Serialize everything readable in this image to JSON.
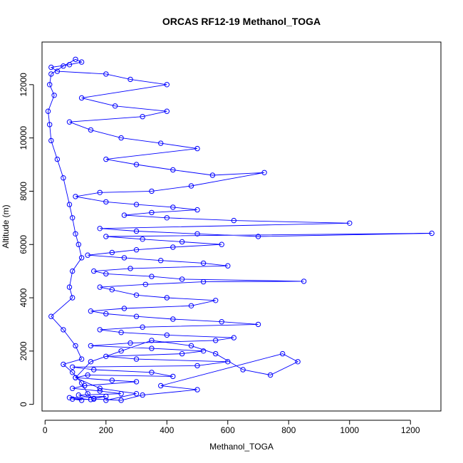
{
  "chart_data": {
    "type": "line",
    "title": "ORCAS RF12-19 Methanol_TOGA",
    "xlabel": "Methanol_TOGA",
    "ylabel": "Altitude (m)",
    "xlim": [
      -10,
      1300
    ],
    "ylim": [
      -250,
      13600
    ],
    "xticks": [
      0,
      200,
      400,
      600,
      800,
      1000,
      1200
    ],
    "yticks": [
      0,
      2000,
      4000,
      6000,
      8000,
      10000,
      12000
    ],
    "grid": false,
    "legend": "none",
    "markers": "open circles",
    "color": "#0000ff",
    "series": [
      {
        "values": [
          [
            120,
            150
          ],
          [
            90,
            200
          ],
          [
            150,
            180
          ],
          [
            80,
            250
          ],
          [
            200,
            300
          ],
          [
            160,
            220
          ],
          [
            110,
            350
          ],
          [
            250,
            400
          ],
          [
            180,
            500
          ],
          [
            90,
            600
          ],
          [
            130,
            700
          ],
          [
            300,
            850
          ],
          [
            220,
            900
          ],
          [
            100,
            1000
          ],
          [
            140,
            1100
          ],
          [
            420,
            1050
          ],
          [
            350,
            1200
          ],
          [
            160,
            1300
          ],
          [
            90,
            1400
          ],
          [
            500,
            1450
          ],
          [
            600,
            1600
          ],
          [
            300,
            1700
          ],
          [
            200,
            1800
          ],
          [
            450,
            1900
          ],
          [
            520,
            2000
          ],
          [
            350,
            2100
          ],
          [
            150,
            2200
          ],
          [
            280,
            2300
          ],
          [
            560,
            2400
          ],
          [
            620,
            2500
          ],
          [
            400,
            2600
          ],
          [
            250,
            2700
          ],
          [
            180,
            2800
          ],
          [
            320,
            2900
          ],
          [
            700,
            3000
          ],
          [
            580,
            3100
          ],
          [
            420,
            3200
          ],
          [
            300,
            3300
          ],
          [
            200,
            3400
          ],
          [
            150,
            3500
          ],
          [
            260,
            3600
          ],
          [
            480,
            3700
          ],
          [
            560,
            3900
          ],
          [
            400,
            4000
          ],
          [
            300,
            4100
          ],
          [
            220,
            4300
          ],
          [
            180,
            4400
          ],
          [
            330,
            4500
          ],
          [
            520,
            4600
          ],
          [
            850,
            4620
          ],
          [
            450,
            4700
          ],
          [
            350,
            4800
          ],
          [
            200,
            4900
          ],
          [
            160,
            5000
          ],
          [
            280,
            5100
          ],
          [
            600,
            5200
          ],
          [
            520,
            5300
          ],
          [
            380,
            5400
          ],
          [
            260,
            5500
          ],
          [
            140,
            5600
          ],
          [
            220,
            5700
          ],
          [
            300,
            5800
          ],
          [
            420,
            5900
          ],
          [
            580,
            6000
          ],
          [
            450,
            6100
          ],
          [
            320,
            6200
          ],
          [
            200,
            6300
          ],
          [
            1270,
            6420
          ],
          [
            700,
            6300
          ],
          [
            500,
            6400
          ],
          [
            300,
            6500
          ],
          [
            180,
            6600
          ],
          [
            1000,
            6800
          ],
          [
            620,
            6900
          ],
          [
            400,
            7000
          ],
          [
            260,
            7100
          ],
          [
            350,
            7200
          ],
          [
            500,
            7300
          ],
          [
            420,
            7400
          ],
          [
            300,
            7500
          ],
          [
            200,
            7600
          ],
          [
            100,
            7800
          ],
          [
            180,
            7950
          ],
          [
            350,
            8000
          ],
          [
            480,
            8200
          ],
          [
            720,
            8700
          ],
          [
            550,
            8600
          ],
          [
            420,
            8800
          ],
          [
            300,
            9000
          ],
          [
            200,
            9200
          ],
          [
            500,
            9600
          ],
          [
            380,
            9800
          ],
          [
            250,
            10000
          ],
          [
            150,
            10300
          ],
          [
            80,
            10600
          ],
          [
            320,
            10800
          ],
          [
            400,
            11000
          ],
          [
            230,
            11200
          ],
          [
            120,
            11500
          ],
          [
            400,
            12000
          ],
          [
            280,
            12200
          ],
          [
            200,
            12400
          ],
          [
            40,
            12500
          ],
          [
            20,
            12650
          ],
          [
            80,
            12750
          ],
          [
            120,
            12850
          ],
          [
            100,
            12950
          ],
          [
            60,
            12700
          ],
          [
            20,
            12400
          ],
          [
            15,
            12000
          ],
          [
            30,
            11600
          ],
          [
            10,
            11000
          ],
          [
            15,
            10500
          ],
          [
            20,
            9900
          ],
          [
            40,
            9200
          ],
          [
            60,
            8500
          ],
          [
            80,
            7500
          ],
          [
            90,
            7000
          ],
          [
            100,
            6400
          ],
          [
            110,
            6000
          ],
          [
            120,
            5500
          ],
          [
            90,
            5000
          ],
          [
            80,
            4400
          ],
          [
            90,
            4000
          ],
          [
            20,
            3300
          ],
          [
            60,
            2800
          ],
          [
            100,
            2200
          ],
          [
            120,
            1700
          ],
          [
            60,
            1500
          ],
          [
            90,
            1200
          ],
          [
            120,
            800
          ],
          [
            140,
            400
          ],
          [
            160,
            200
          ],
          [
            250,
            150
          ],
          [
            320,
            350
          ],
          [
            500,
            550
          ],
          [
            380,
            700
          ],
          [
            780,
            1900
          ],
          [
            830,
            1600
          ],
          [
            740,
            1100
          ],
          [
            650,
            1300
          ],
          [
            560,
            1900
          ],
          [
            480,
            2200
          ],
          [
            350,
            2400
          ],
          [
            250,
            2000
          ],
          [
            150,
            1600
          ],
          [
            100,
            1000
          ],
          [
            180,
            600
          ],
          [
            300,
            400
          ],
          [
            200,
            150
          ]
        ]
      }
    ]
  }
}
